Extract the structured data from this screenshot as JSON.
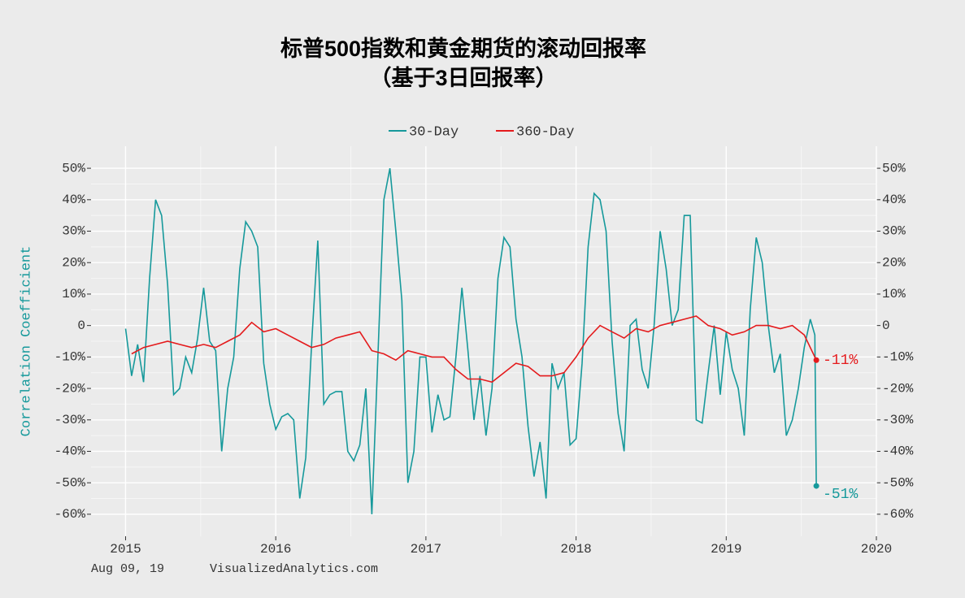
{
  "chart_data": {
    "type": "line",
    "title": "标普500指数和黄金期货的滚动回报率",
    "subtitle": "（基于3日回报率）",
    "ylabel": "Correlation Coefficient",
    "footer_date": "Aug 09, 19",
    "footer_source": "VisualizedAnalytics.com",
    "xlim": [
      2014.77,
      2020.0
    ],
    "xticks": [
      2015,
      2016,
      2017,
      2018,
      2019,
      2020
    ],
    "ylim": [
      -67,
      57
    ],
    "yticks": [
      {
        "value": -60,
        "label": "-60%"
      },
      {
        "value": -50,
        "label": "-50%"
      },
      {
        "value": -40,
        "label": "-40%"
      },
      {
        "value": -30,
        "label": "-30%"
      },
      {
        "value": -20,
        "label": "-20%"
      },
      {
        "value": -10,
        "label": "-10%"
      },
      {
        "value": 0,
        "label": "0"
      },
      {
        "value": 10,
        "label": "10%"
      },
      {
        "value": 20,
        "label": "20%"
      },
      {
        "value": 30,
        "label": "30%"
      },
      {
        "value": 40,
        "label": "40%"
      },
      {
        "value": 50,
        "label": "50%"
      }
    ],
    "grid": true,
    "legend": "top",
    "series": [
      {
        "name": "30-Day",
        "color": "#16999b",
        "end_label": "-51%",
        "x": [
          2015.0,
          2015.04,
          2015.08,
          2015.12,
          2015.16,
          2015.2,
          2015.24,
          2015.28,
          2015.32,
          2015.36,
          2015.4,
          2015.44,
          2015.48,
          2015.52,
          2015.56,
          2015.6,
          2015.64,
          2015.68,
          2015.72,
          2015.76,
          2015.8,
          2015.84,
          2015.88,
          2015.92,
          2015.96,
          2016.0,
          2016.04,
          2016.08,
          2016.12,
          2016.16,
          2016.2,
          2016.24,
          2016.28,
          2016.32,
          2016.36,
          2016.4,
          2016.44,
          2016.48,
          2016.52,
          2016.56,
          2016.6,
          2016.64,
          2016.68,
          2016.72,
          2016.76,
          2016.8,
          2016.84,
          2016.88,
          2016.92,
          2016.96,
          2017.0,
          2017.04,
          2017.08,
          2017.12,
          2017.16,
          2017.2,
          2017.24,
          2017.28,
          2017.32,
          2017.36,
          2017.4,
          2017.44,
          2017.48,
          2017.52,
          2017.56,
          2017.6,
          2017.64,
          2017.68,
          2017.72,
          2017.76,
          2017.8,
          2017.84,
          2017.88,
          2017.92,
          2017.96,
          2018.0,
          2018.04,
          2018.08,
          2018.12,
          2018.16,
          2018.2,
          2018.24,
          2018.28,
          2018.32,
          2018.36,
          2018.4,
          2018.44,
          2018.48,
          2018.52,
          2018.56,
          2018.6,
          2018.64,
          2018.68,
          2018.72,
          2018.76,
          2018.8,
          2018.84,
          2018.88,
          2018.92,
          2018.96,
          2019.0,
          2019.04,
          2019.08,
          2019.12,
          2019.16,
          2019.2,
          2019.24,
          2019.28,
          2019.32,
          2019.36,
          2019.4,
          2019.44,
          2019.48,
          2019.52,
          2019.56,
          2019.59,
          2019.6
        ],
        "values": [
          -1,
          -16,
          -6,
          -18,
          15,
          40,
          35,
          13,
          -22,
          -20,
          -10,
          -15,
          -4,
          12,
          -5,
          -8,
          -40,
          -20,
          -10,
          18,
          33,
          30,
          25,
          -12,
          -25,
          -33,
          -29,
          -28,
          -30,
          -55,
          -42,
          -5,
          27,
          -25,
          -22,
          -21,
          -21,
          -40,
          -43,
          -38,
          -20,
          -60,
          -10,
          40,
          50,
          30,
          8,
          -50,
          -40,
          -10,
          -10,
          -34,
          -22,
          -30,
          -29,
          -10,
          12,
          -8,
          -30,
          -16,
          -35,
          -20,
          15,
          28,
          25,
          2,
          -10,
          -32,
          -48,
          -37,
          -55,
          -12,
          -20,
          -15,
          -38,
          -36,
          -12,
          25,
          42,
          40,
          30,
          -5,
          -28,
          -40,
          0,
          2,
          -14,
          -20,
          0,
          30,
          18,
          0,
          5,
          35,
          35,
          -30,
          -31,
          -15,
          0,
          -22,
          -2,
          -14,
          -20,
          -35,
          5,
          28,
          20,
          0,
          -15,
          -9,
          -35,
          -30,
          -20,
          -7,
          2,
          -3,
          -51
        ]
      },
      {
        "name": "360-Day",
        "color": "#e41a1c",
        "end_label": "-11%",
        "x": [
          2015.04,
          2015.12,
          2015.2,
          2015.28,
          2015.36,
          2015.44,
          2015.52,
          2015.6,
          2015.68,
          2015.76,
          2015.84,
          2015.92,
          2016.0,
          2016.08,
          2016.16,
          2016.24,
          2016.32,
          2016.4,
          2016.48,
          2016.56,
          2016.64,
          2016.72,
          2016.8,
          2016.88,
          2016.96,
          2017.04,
          2017.12,
          2017.2,
          2017.28,
          2017.36,
          2017.44,
          2017.52,
          2017.6,
          2017.68,
          2017.76,
          2017.84,
          2017.92,
          2018.0,
          2018.08,
          2018.16,
          2018.24,
          2018.32,
          2018.4,
          2018.48,
          2018.56,
          2018.64,
          2018.72,
          2018.8,
          2018.88,
          2018.96,
          2019.04,
          2019.12,
          2019.2,
          2019.28,
          2019.36,
          2019.44,
          2019.52,
          2019.6
        ],
        "values": [
          -9,
          -7,
          -6,
          -5,
          -6,
          -7,
          -6,
          -7,
          -5,
          -3,
          1,
          -2,
          -1,
          -3,
          -5,
          -7,
          -6,
          -4,
          -3,
          -2,
          -8,
          -9,
          -11,
          -8,
          -9,
          -10,
          -10,
          -14,
          -17,
          -17,
          -18,
          -15,
          -12,
          -13,
          -16,
          -16,
          -15,
          -10,
          -4,
          0,
          -2,
          -4,
          -1,
          -2,
          0,
          1,
          2,
          3,
          0,
          -1,
          -3,
          -2,
          0,
          0,
          -1,
          0,
          -3,
          -11
        ]
      }
    ]
  }
}
